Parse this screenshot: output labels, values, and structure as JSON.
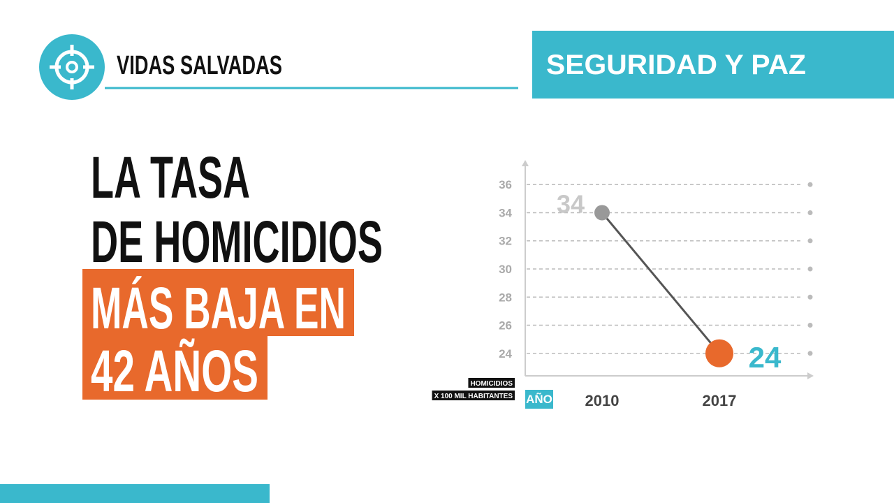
{
  "header": {
    "title": "VIDAS SALVADAS",
    "section": "SEGURIDAD Y PAZ"
  },
  "headline": {
    "lines": [
      "LA TASA",
      "DE HOMICIDIOS",
      "MÁS BAJA EN",
      "42 AÑOS"
    ]
  },
  "chart_data": {
    "type": "line",
    "y_label_lines": [
      "HOMICIDIOS",
      "X 100 MIL HABITANTES"
    ],
    "x_label": "AÑO",
    "categories": [
      "2010",
      "2017"
    ],
    "values": [
      34,
      24
    ],
    "line_color": "#555555",
    "point_colors": [
      "#999999",
      "#e8692c"
    ],
    "label_colors": [
      "#c8c8c8",
      "#3ab8cc"
    ],
    "ylim": [
      22.4,
      37.6
    ],
    "yticks": [
      24,
      26,
      28,
      30,
      32,
      34,
      36
    ],
    "grid": true
  }
}
